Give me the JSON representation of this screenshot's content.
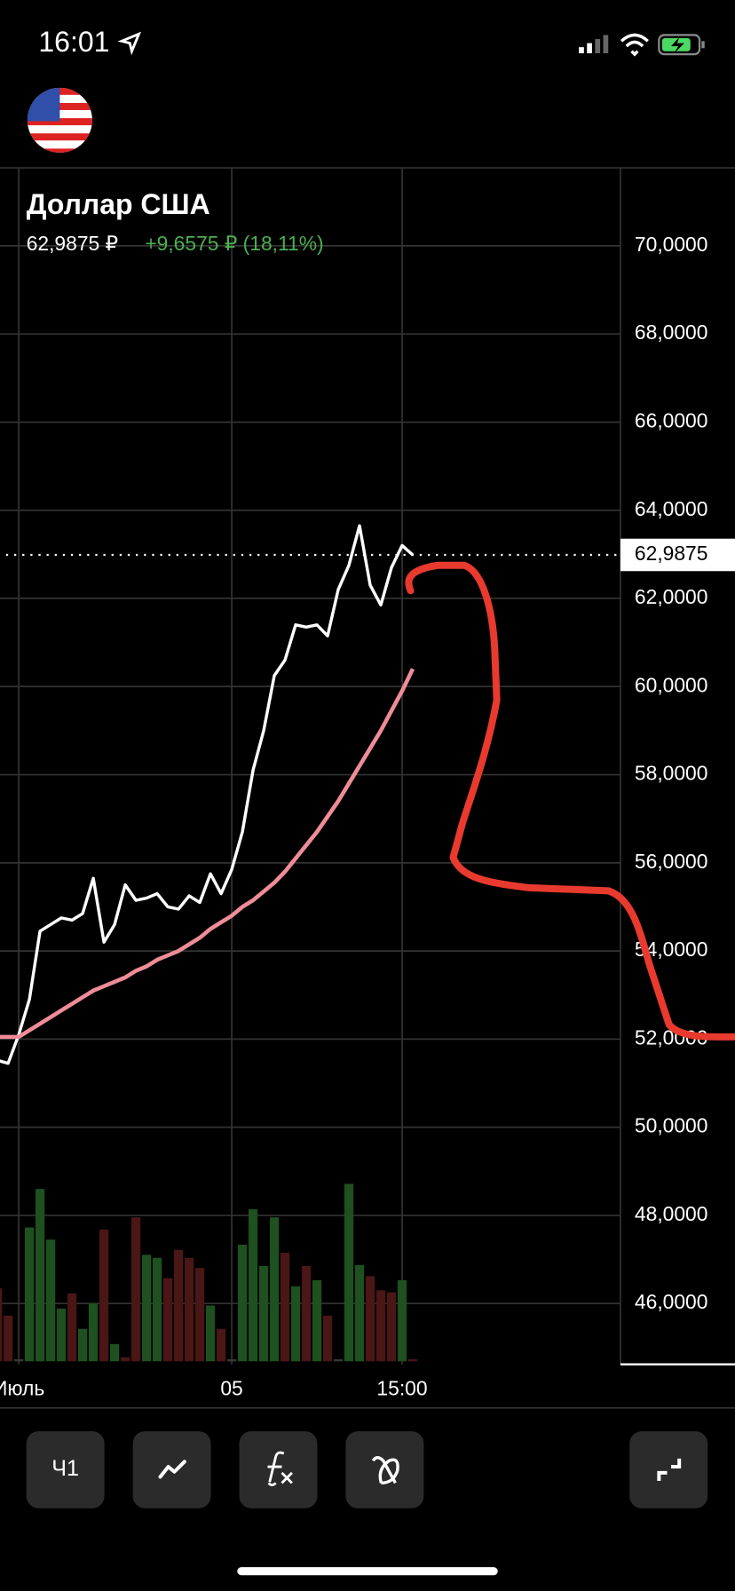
{
  "status_bar": {
    "time": "16:01"
  },
  "chart_data": {
    "type": "line",
    "title": "Доллар США",
    "price": "62,9875 ₽",
    "change": "+9,6575 ₽ (18,11%)",
    "xlim": [
      0.24,
      58.5
    ],
    "ylim": [
      44.62,
      71.77
    ],
    "grid": true,
    "xticks": [
      {
        "value": 2,
        "label": "Июль"
      },
      {
        "value": 22,
        "label": "05"
      },
      {
        "value": 38,
        "label": "15:00"
      }
    ],
    "yticks": [
      {
        "value": 70,
        "label": "70,0000"
      },
      {
        "value": 68,
        "label": "68,0000"
      },
      {
        "value": 66,
        "label": "66,0000"
      },
      {
        "value": 64,
        "label": "64,0000"
      },
      {
        "value": 62,
        "label": "62,0000"
      },
      {
        "value": 60,
        "label": "60,0000"
      },
      {
        "value": 58,
        "label": "58,0000"
      },
      {
        "value": 56,
        "label": "56,0000"
      },
      {
        "value": 54,
        "label": "54,0000"
      },
      {
        "value": 52,
        "label": "52,0000"
      },
      {
        "value": 50,
        "label": "50,0000"
      },
      {
        "value": 48,
        "label": "48,0000"
      },
      {
        "value": 46,
        "label": "46,0000"
      }
    ],
    "last_price": {
      "value": 62.9875,
      "label": "62,9875"
    },
    "series": [
      {
        "color": "#ffffff",
        "values": [
          51.52,
          51.45,
          52.1,
          52.9,
          54.45,
          54.6,
          54.75,
          54.7,
          54.85,
          55.65,
          54.2,
          54.6,
          55.5,
          55.15,
          55.2,
          55.3,
          55.0,
          54.95,
          55.25,
          55.1,
          55.75,
          55.3,
          55.85,
          56.7,
          58.1,
          59.0,
          60.25,
          60.6,
          61.4,
          61.35,
          61.4,
          61.15,
          62.2,
          62.75,
          63.65,
          62.3,
          61.85,
          62.7,
          63.2,
          62.9875
        ]
      },
      {
        "color": "#ef8c98",
        "values": [
          52.05,
          52.05,
          52.05,
          52.2,
          52.35,
          52.5,
          52.65,
          52.8,
          52.95,
          53.1,
          53.2,
          53.3,
          53.4,
          53.55,
          53.65,
          53.8,
          53.9,
          54.0,
          54.15,
          54.3,
          54.5,
          54.65,
          54.8,
          55.0,
          55.15,
          55.35,
          55.55,
          55.8,
          56.1,
          56.4,
          56.7,
          57.05,
          57.4,
          57.8,
          58.2,
          58.6,
          59.0,
          59.45,
          59.9,
          60.4
        ]
      }
    ],
    "volume": {
      "values": [
        72,
        45,
        2,
        132,
        170,
        120,
        52,
        67,
        32,
        57,
        130,
        17,
        4,
        142,
        105,
        102,
        82,
        110,
        102,
        92,
        55,
        32,
        2,
        115,
        150,
        94,
        142,
        107,
        74,
        94,
        80,
        45,
        2,
        175,
        95,
        84,
        70,
        68,
        80,
        2
      ],
      "colors": [
        "#4a1616",
        "#4a1616",
        "#3a3a3a",
        "#1e5020",
        "#1e5020",
        "#1e5020",
        "#1e5020",
        "#4a1616",
        "#1e5020",
        "#1e5020",
        "#4a1616",
        "#1e5020",
        "#4a1616",
        "#4a1616",
        "#1e5020",
        "#1e5020",
        "#4a1616",
        "#4a1616",
        "#4a1616",
        "#4a1616",
        "#1e5020",
        "#4a1616",
        "#3a3a3a",
        "#1e5020",
        "#1e5020",
        "#1e5020",
        "#1e5020",
        "#4a1616",
        "#1e5020",
        "#4a1616",
        "#1e5020",
        "#4a1616",
        "#3a3a3a",
        "#1e5020",
        "#1e5020",
        "#4a1616",
        "#4a1616",
        "#4a1616",
        "#1e5020",
        "#4a1616"
      ]
    }
  },
  "toolbar": {
    "period": "Ч1"
  }
}
